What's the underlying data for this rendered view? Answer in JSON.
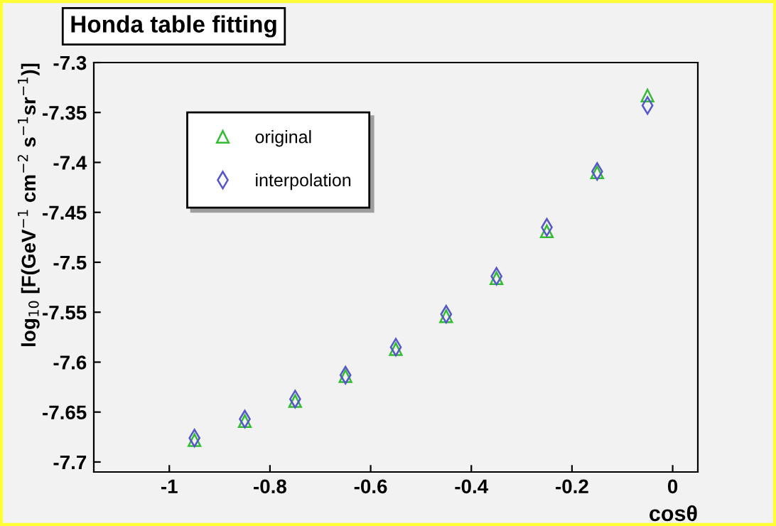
{
  "chart_data": {
    "type": "scatter",
    "title": "Honda table fitting",
    "xlabel": "cosθ",
    "ylabel": "log$_{10}$ [F(GeV$^{−1}$ cm$^{−2}$ s$^{−1}$sr$^{−1}$)]",
    "x": [
      -0.95,
      -0.85,
      -0.75,
      -0.65,
      -0.55,
      -0.45,
      -0.35,
      -0.25,
      -0.15,
      -0.05
    ],
    "series": [
      {
        "name": "original",
        "color": "#33bb33",
        "marker": "triangle",
        "values": [
          -7.678,
          -7.659,
          -7.639,
          -7.614,
          -7.587,
          -7.554,
          -7.516,
          -7.469,
          -7.41,
          -7.333
        ]
      },
      {
        "name": "interpolation",
        "color": "#5555cc",
        "marker": "diamond",
        "values": [
          -7.676,
          -7.657,
          -7.637,
          -7.613,
          -7.585,
          -7.552,
          -7.514,
          -7.465,
          -7.409,
          -7.343
        ]
      }
    ],
    "xlim": [
      -1.15,
      0.05
    ],
    "ylim": [
      -7.71,
      -7.3
    ],
    "xticks": [
      -1,
      -0.8,
      -0.6,
      -0.4,
      -0.2,
      0
    ],
    "yticks": [
      -7.7,
      -7.65,
      -7.6,
      -7.55,
      -7.5,
      -7.45,
      -7.4,
      -7.35,
      -7.3
    ],
    "grid": false,
    "legend": "top left"
  }
}
